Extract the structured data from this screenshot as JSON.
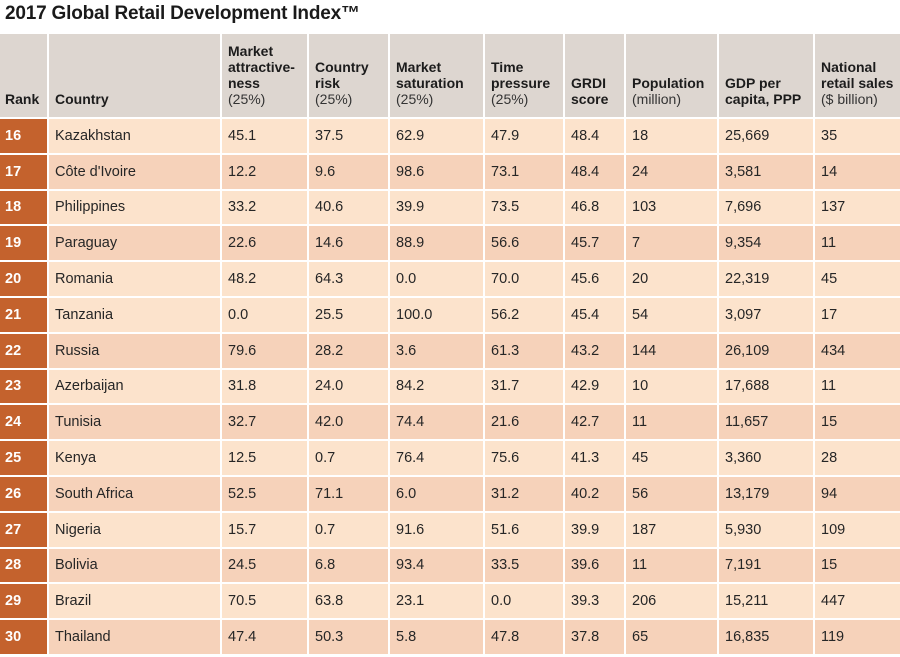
{
  "title": "2017 Global Retail Development Index™",
  "headers": [
    {
      "main": "Rank",
      "sub": ""
    },
    {
      "main": "Country",
      "sub": ""
    },
    {
      "main": "Market attractive-ness",
      "sub": "(25%)"
    },
    {
      "main": "Country risk",
      "sub": "(25%)"
    },
    {
      "main": "Market saturation",
      "sub": "(25%)"
    },
    {
      "main": "Time pressure",
      "sub": "(25%)"
    },
    {
      "main": "GRDI score",
      "sub": ""
    },
    {
      "main": "Population",
      "sub": "(million)"
    },
    {
      "main": "GDP per capita, PPP",
      "sub": ""
    },
    {
      "main": "National retail sales",
      "sub": "($ billion)"
    }
  ],
  "rows": [
    [
      "16",
      "Kazakhstan",
      "45.1",
      "37.5",
      "62.9",
      "47.9",
      "48.4",
      "18",
      "25,669",
      "35"
    ],
    [
      "17",
      "Côte d'Ivoire",
      "12.2",
      "9.6",
      "98.6",
      "73.1",
      "48.4",
      "24",
      "3,581",
      "14"
    ],
    [
      "18",
      "Philippines",
      "33.2",
      "40.6",
      "39.9",
      "73.5",
      "46.8",
      "103",
      "7,696",
      "137"
    ],
    [
      "19",
      "Paraguay",
      "22.6",
      "14.6",
      "88.9",
      "56.6",
      "45.7",
      "7",
      "9,354",
      "11"
    ],
    [
      "20",
      "Romania",
      "48.2",
      "64.3",
      "0.0",
      "70.0",
      "45.6",
      "20",
      "22,319",
      "45"
    ],
    [
      "21",
      "Tanzania",
      "0.0",
      "25.5",
      "100.0",
      "56.2",
      "45.4",
      "54",
      "3,097",
      "17"
    ],
    [
      "22",
      "Russia",
      "79.6",
      "28.2",
      "3.6",
      "61.3",
      "43.2",
      "144",
      "26,109",
      "434"
    ],
    [
      "23",
      "Azerbaijan",
      "31.8",
      "24.0",
      "84.2",
      "31.7",
      "42.9",
      "10",
      "17,688",
      "11"
    ],
    [
      "24",
      "Tunisia",
      "32.7",
      "42.0",
      "74.4",
      "21.6",
      "42.7",
      "11",
      "11,657",
      "15"
    ],
    [
      "25",
      "Kenya",
      "12.5",
      "0.7",
      "76.4",
      "75.6",
      "41.3",
      "45",
      "3,360",
      "28"
    ],
    [
      "26",
      "South Africa",
      "52.5",
      "71.1",
      "6.0",
      "31.2",
      "40.2",
      "56",
      "13,179",
      "94"
    ],
    [
      "27",
      "Nigeria",
      "15.7",
      "0.7",
      "91.6",
      "51.6",
      "39.9",
      "187",
      "5,930",
      "109"
    ],
    [
      "28",
      "Bolivia",
      "24.5",
      "6.8",
      "93.4",
      "33.5",
      "39.6",
      "11",
      "7,191",
      "15"
    ],
    [
      "29",
      "Brazil",
      "70.5",
      "63.8",
      "23.1",
      "0.0",
      "39.3",
      "206",
      "15,211",
      "447"
    ],
    [
      "30",
      "Thailand",
      "47.4",
      "50.3",
      "5.8",
      "47.8",
      "37.8",
      "65",
      "16,835",
      "119"
    ]
  ],
  "colors": {
    "rank_bg": "#c4622d",
    "header_bg": "#ddd6d0",
    "band_light": "#fce3cc",
    "band_dark": "#f6d2ba"
  }
}
